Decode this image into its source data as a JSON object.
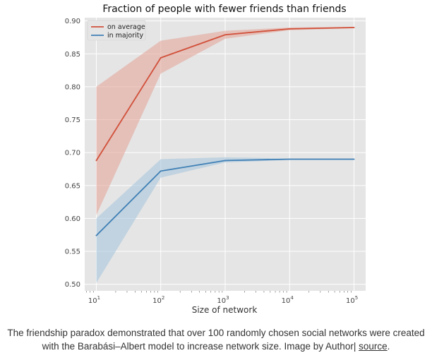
{
  "chart_data": {
    "type": "line",
    "title": "Fraction of people with fewer friends than friends",
    "xlabel": "Size of network",
    "ylabel": "",
    "xscale": "log",
    "x": [
      10,
      100,
      1000,
      10000,
      100000
    ],
    "x_tick_labels": [
      {
        "base": "10",
        "exp": "1"
      },
      {
        "base": "10",
        "exp": "2"
      },
      {
        "base": "10",
        "exp": "3"
      },
      {
        "base": "10",
        "exp": "4"
      },
      {
        "base": "10",
        "exp": "5"
      }
    ],
    "ylim": [
      0.49,
      0.905
    ],
    "y_ticks": [
      0.5,
      0.55,
      0.6,
      0.65,
      0.7,
      0.75,
      0.8,
      0.85,
      0.9
    ],
    "y_tick_labels": [
      "0.50",
      "0.55",
      "0.60",
      "0.65",
      "0.70",
      "0.75",
      "0.80",
      "0.85",
      "0.90"
    ],
    "grid": true,
    "legend_position": "top-left",
    "series": [
      {
        "name": "on average",
        "color": "#d1503a",
        "band_color": "#e3a69b",
        "values": [
          0.688,
          0.844,
          0.879,
          0.888,
          0.89
        ],
        "lower": [
          0.605,
          0.82,
          0.873,
          0.886,
          0.889
        ],
        "upper": [
          0.8,
          0.87,
          0.885,
          0.89,
          0.891
        ]
      },
      {
        "name": "in majority",
        "color": "#3f7fb5",
        "band_color": "#a8c6dc",
        "values": [
          0.574,
          0.672,
          0.688,
          0.69,
          0.69
        ],
        "lower": [
          0.502,
          0.662,
          0.685,
          0.689,
          0.689
        ],
        "upper": [
          0.6,
          0.69,
          0.693,
          0.691,
          0.691
        ]
      }
    ]
  },
  "caption": {
    "text": "The friendship paradox demonstrated that over 100 randomly chosen social networks were created with the Barabási–Albert model to increase network size. Image by Author| ",
    "link_label": "source",
    "end": "."
  }
}
